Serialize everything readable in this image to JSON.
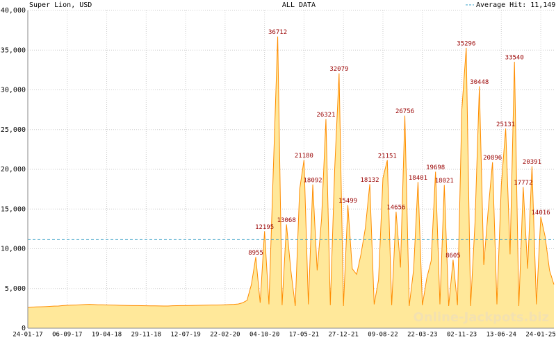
{
  "chart_data": {
    "type": "area",
    "title": "Super Lion, USD",
    "subtitle": "ALL DATA",
    "average_label": "Average Hit: 11,149",
    "average": 11149,
    "watermark": "Online-Jackpots.biz",
    "color": "#ff8c00",
    "fill": "#ffe89a",
    "label_color": "#990000",
    "grid": true,
    "categories": [
      "24-01-17",
      null,
      null,
      null,
      null,
      null,
      null,
      null,
      null,
      "06-09-17",
      null,
      null,
      null,
      null,
      null,
      null,
      null,
      null,
      "19-04-18",
      null,
      null,
      null,
      null,
      null,
      null,
      null,
      null,
      "29-11-18",
      null,
      null,
      null,
      null,
      null,
      null,
      null,
      null,
      "12-07-19",
      null,
      null,
      null,
      null,
      null,
      null,
      null,
      null,
      "22-02-20",
      null,
      null,
      null,
      null,
      null,
      null,
      null,
      null,
      "04-10-20",
      null,
      null,
      null,
      null,
      null,
      null,
      null,
      null,
      "17-05-21",
      null,
      null,
      null,
      null,
      null,
      null,
      null,
      null,
      "27-12-21",
      null,
      null,
      null,
      null,
      null,
      null,
      null,
      null,
      "09-08-22",
      null,
      null,
      null,
      null,
      null,
      null,
      null,
      null,
      "22-03-23",
      null,
      null,
      null,
      null,
      null,
      null,
      null,
      null,
      "02-11-23",
      null,
      null,
      null,
      null,
      null,
      null,
      null,
      null,
      "13-06-24",
      null,
      null,
      null,
      null,
      null,
      null,
      null,
      null,
      "24-01-25",
      null,
      null,
      null
    ],
    "values": [
      2600,
      2650,
      2680,
      2700,
      2720,
      2750,
      2780,
      2800,
      2850,
      2880,
      2900,
      2920,
      2950,
      2980,
      3000,
      2980,
      2950,
      2950,
      2930,
      2920,
      2900,
      2880,
      2870,
      2860,
      2850,
      2850,
      2840,
      2830,
      2820,
      2820,
      2810,
      2800,
      2800,
      2830,
      2840,
      2850,
      2850,
      2860,
      2870,
      2880,
      2890,
      2900,
      2910,
      2920,
      2930,
      2950,
      2980,
      3000,
      3050,
      3200,
      3500,
      5500,
      8955,
      3200,
      12195,
      3000,
      20000,
      36712,
      2900,
      13068,
      7280,
      2800,
      17455,
      21180,
      3000,
      18092,
      7282,
      13754,
      26321,
      2900,
      20086,
      32079,
      2800,
      15499,
      7482,
      6776,
      9327,
      12650,
      18132,
      3000,
      6085,
      18888,
      21151,
      2900,
      14656,
      7640,
      26756,
      2800,
      7384,
      18401,
      2900,
      6299,
      8484,
      19698,
      3000,
      18021,
      2800,
      8605,
      2900,
      27546,
      35296,
      2800,
      13279,
      30448,
      7963,
      14822,
      20896,
      3000,
      18028,
      25131,
      9305,
      33540,
      2800,
      17772,
      7487,
      20391,
      3000,
      14016,
      11523,
      7276,
      5500
    ],
    "ylim": [
      0,
      40000
    ],
    "yticks": [
      0,
      {
        "value": 5000,
        "label": "5,000"
      },
      {
        "value": 10000,
        "label": "10,000"
      },
      {
        "value": 15000,
        "label": "15,000"
      },
      {
        "value": 20000,
        "label": "20,000"
      },
      {
        "value": 25000,
        "label": "25,000"
      },
      {
        "value": 30000,
        "label": "30,000"
      },
      {
        "value": 35000,
        "label": "35,000"
      },
      {
        "value": 40000,
        "label": "40,000"
      }
    ]
  }
}
